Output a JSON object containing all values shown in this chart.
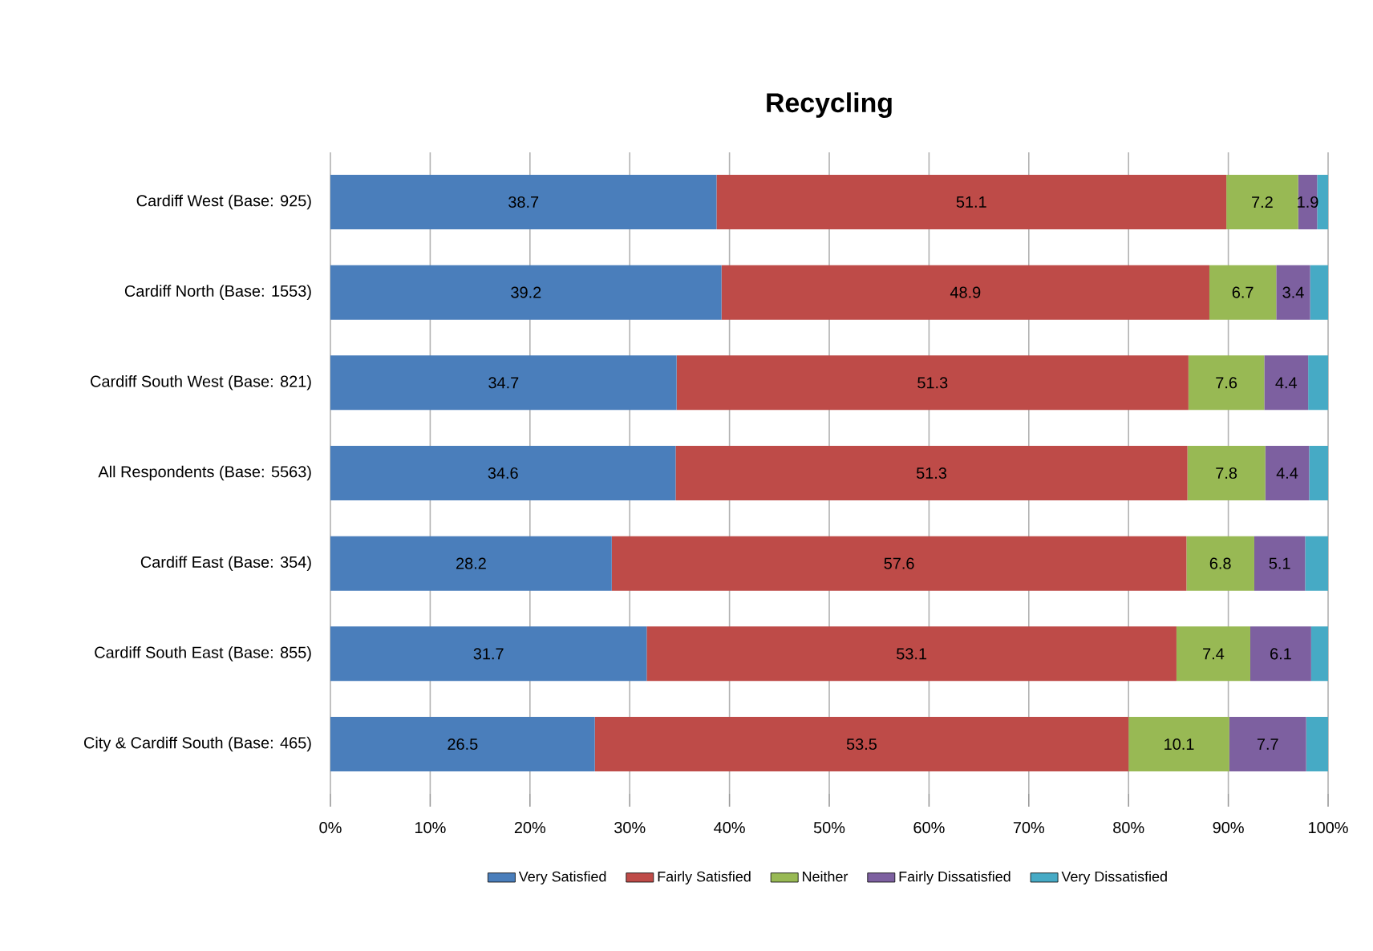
{
  "chart_data": {
    "type": "bar",
    "orientation": "horizontal",
    "stacked": true,
    "title": "Recycling",
    "categories": [
      "Cardiff West (Base: 925)",
      "Cardiff North (Base: 1553)",
      "Cardiff South West (Base: 821)",
      "All Respondents (Base: 5563)",
      "Cardiff East (Base: 354)",
      "Cardiff South East (Base: 855)",
      "City & Cardiff South (Base: 465)"
    ],
    "series": [
      {
        "name": "Very Satisfied",
        "color": "#4a7ebb",
        "values": [
          38.7,
          39.2,
          34.7,
          34.6,
          28.2,
          31.7,
          26.5
        ],
        "value_labels": [
          "38.7",
          "39.2",
          "34.7",
          "34.6",
          "28.2",
          "31.7",
          "26.5"
        ]
      },
      {
        "name": "Fairly Satisfied",
        "color": "#be4b48",
        "values": [
          51.1,
          48.9,
          51.3,
          51.3,
          57.6,
          53.1,
          53.5
        ],
        "value_labels": [
          "51.1",
          "48.9",
          "51.3",
          "51.3",
          "57.6",
          "53.1",
          "53.5"
        ]
      },
      {
        "name": "Neither",
        "color": "#98b954",
        "values": [
          7.2,
          6.7,
          7.6,
          7.8,
          6.8,
          7.4,
          10.1
        ],
        "value_labels": [
          "7.2",
          "6.7",
          "7.6",
          "7.8",
          "6.8",
          "7.4",
          "10.1"
        ]
      },
      {
        "name": "Fairly Dissatisfied",
        "color": "#7d60a0",
        "values": [
          1.9,
          3.4,
          4.4,
          4.4,
          5.1,
          6.1,
          7.7
        ],
        "value_labels": [
          "1.9",
          "3.4",
          "4.4",
          "4.4",
          "5.1",
          "6.1",
          "7.7"
        ]
      },
      {
        "name": "Very Dissatisfied",
        "color": "#46aac5",
        "values": [
          1.1,
          1.8,
          2.0,
          1.9,
          2.3,
          1.7,
          2.2
        ]
      }
    ],
    "xlim": [
      0,
      100
    ],
    "xticks": [
      {
        "value": 0,
        "label": "0%"
      },
      {
        "value": 10,
        "label": "10%"
      },
      {
        "value": 20,
        "label": "20%"
      },
      {
        "value": 30,
        "label": "30%"
      },
      {
        "value": 40,
        "label": "40%"
      },
      {
        "value": 50,
        "label": "50%"
      },
      {
        "value": 60,
        "label": "60%"
      },
      {
        "value": 70,
        "label": "70%"
      },
      {
        "value": 80,
        "label": "80%"
      },
      {
        "value": 90,
        "label": "90%"
      },
      {
        "value": 100,
        "label": "100%"
      }
    ],
    "grid": "x",
    "legend": "bottom"
  }
}
